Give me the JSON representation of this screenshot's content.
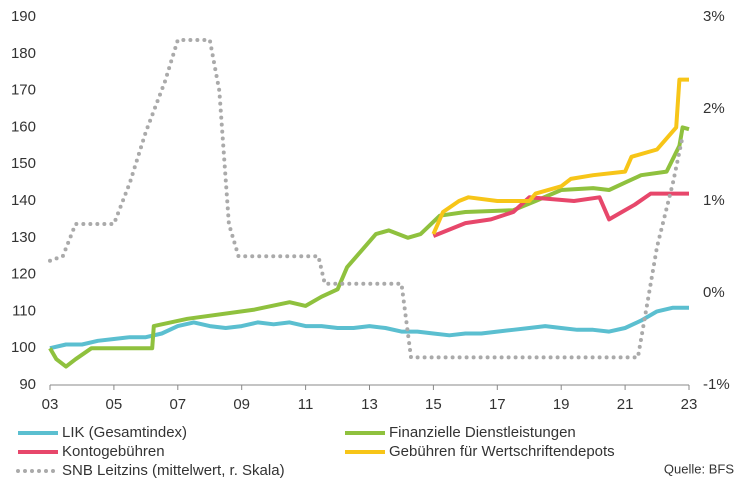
{
  "chart_data": {
    "type": "line",
    "xlim": [
      2003,
      2023
    ],
    "xticks": [
      {
        "value": 2003,
        "label": "03"
      },
      {
        "value": 2005,
        "label": "05"
      },
      {
        "value": 2007,
        "label": "07"
      },
      {
        "value": 2009,
        "label": "09"
      },
      {
        "value": 2011,
        "label": "11"
      },
      {
        "value": 2013,
        "label": "13"
      },
      {
        "value": 2015,
        "label": "15"
      },
      {
        "value": 2017,
        "label": "17"
      },
      {
        "value": 2019,
        "label": "19"
      },
      {
        "value": 2021,
        "label": "21"
      },
      {
        "value": 2023,
        "label": "23"
      }
    ],
    "ylim": [
      90,
      190
    ],
    "yticks": [
      90,
      100,
      110,
      120,
      130,
      140,
      150,
      160,
      170,
      180,
      190
    ],
    "y2lim": [
      -1,
      3
    ],
    "y2ticks": [
      {
        "value": -1,
        "label": "-1%"
      },
      {
        "value": 0,
        "label": "0%"
      },
      {
        "value": 1,
        "label": "1%"
      },
      {
        "value": 2,
        "label": "2%"
      },
      {
        "value": 3,
        "label": "3%"
      }
    ],
    "series": [
      {
        "name": "LIK (Gesamtindex)",
        "color": "#5bbfd0",
        "x": [
          2003,
          2003.5,
          2004,
          2004.5,
          2005,
          2005.5,
          2006,
          2006.5,
          2007,
          2007.5,
          2008,
          2008.5,
          2009,
          2009.5,
          2010,
          2010.5,
          2011,
          2011.5,
          2012,
          2012.5,
          2013,
          2013.5,
          2014,
          2014.5,
          2015,
          2015.5,
          2016,
          2016.5,
          2017,
          2017.5,
          2018,
          2018.5,
          2019,
          2019.5,
          2020,
          2020.5,
          2021,
          2021.5,
          2022,
          2022.5,
          2023
        ],
        "values": [
          100,
          101,
          101,
          102,
          102.5,
          103,
          103,
          104,
          106,
          107,
          106,
          105.5,
          106,
          107,
          106.5,
          107,
          106,
          106,
          105.5,
          105.5,
          106,
          105.5,
          104.5,
          104.5,
          104,
          103.5,
          104,
          104,
          104.5,
          105,
          105.5,
          106,
          105.5,
          105,
          105,
          104.5,
          105.5,
          107.5,
          110,
          111,
          111
        ]
      },
      {
        "name": "Finanzielle Dienstleistungen",
        "color": "#8fc13e",
        "x": [
          2003,
          2003.2,
          2003.5,
          2003.8,
          2004.3,
          2006.2,
          2006.25,
          2007.3,
          2009.4,
          2010.5,
          2011,
          2011.5,
          2012,
          2012.3,
          2012.8,
          2013.2,
          2013.6,
          2014.2,
          2014.6,
          2015.2,
          2016,
          2017.5,
          2018.2,
          2019,
          2020,
          2020.5,
          2021,
          2021.5,
          2022.3,
          2022.7,
          2022.8,
          2023
        ],
        "values": [
          100,
          97,
          95,
          97,
          100,
          100,
          106,
          108,
          110.5,
          112.5,
          111.5,
          114,
          116,
          122,
          127,
          131,
          132,
          130,
          131,
          136,
          137,
          137.5,
          140,
          143,
          143.5,
          143,
          145,
          147,
          148,
          155,
          160,
          159.5
        ]
      },
      {
        "name": "Kontogebühren",
        "color": "#e7476b",
        "x": [
          2015,
          2016,
          2016.8,
          2017.5,
          2018,
          2019.4,
          2020.2,
          2020.5,
          2020.9,
          2021.3,
          2021.8,
          2023
        ],
        "values": [
          130.5,
          134,
          135,
          137,
          141,
          140,
          141,
          135,
          137,
          139,
          142,
          142
        ]
      },
      {
        "name": "Gebühren für Wertschriftendepots",
        "color": "#f7c518",
        "x": [
          2015,
          2015.3,
          2015.8,
          2016.1,
          2017,
          2018,
          2018.2,
          2019,
          2019.3,
          2020,
          2021,
          2021.2,
          2022,
          2022.6,
          2022.7,
          2023
        ],
        "values": [
          131,
          137,
          140,
          141,
          140,
          140,
          142,
          144,
          146,
          147,
          148,
          152,
          154,
          160,
          173,
          173
        ]
      },
      {
        "name": "SNB Leitzins (mittelwert, r. Skala)",
        "color": "#aaaaaa",
        "axis": "y2",
        "dashed": true,
        "x": [
          2003,
          2003.4,
          2003.8,
          2005,
          2005.5,
          2006,
          2006.6,
          2007,
          2008,
          2008.3,
          2008.6,
          2008.9,
          2010,
          2011.4,
          2011.6,
          2014,
          2014.3,
          2021.4,
          2021.7,
          2022,
          2022.5,
          2022.8
        ],
        "values": [
          0.35,
          0.4,
          0.75,
          0.75,
          1.2,
          1.75,
          2.3,
          2.75,
          2.75,
          2.2,
          0.75,
          0.4,
          0.4,
          0.4,
          0.1,
          0.1,
          -0.7,
          -0.7,
          -0.1,
          0.5,
          1.2,
          1.7
        ]
      }
    ],
    "source": "Quelle: BFS"
  }
}
